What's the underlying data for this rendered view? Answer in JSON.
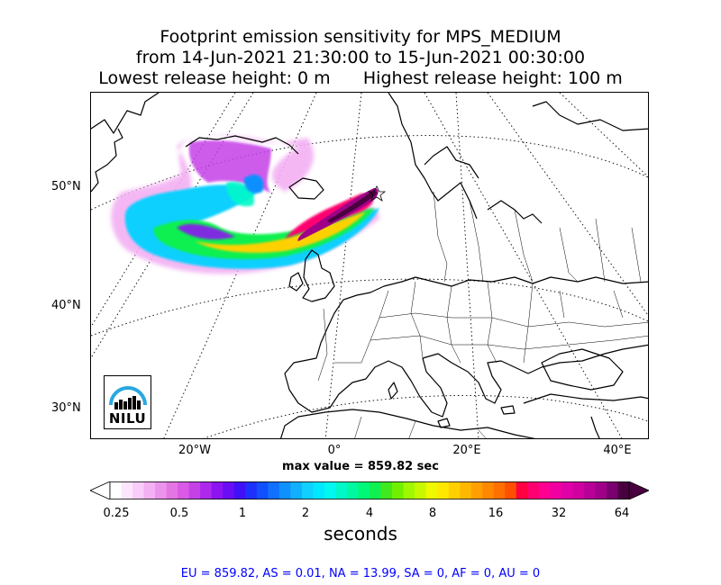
{
  "title": {
    "line1": "Footprint emission sensitivity for MPS_MEDIUM",
    "line2": "from 14-Jun-2021 21:30:00 to 15-Jun-2021 00:30:00",
    "line3": "Lowest release height: 0 m      Highest release height: 100 m"
  },
  "map": {
    "lat_labels": [
      "50°N",
      "40°N",
      "30°N"
    ],
    "lon_labels": [
      "20°W",
      "0°",
      "20°E",
      "40°E"
    ],
    "logo_text": "NILU",
    "logo_color": "#29a8e0"
  },
  "max_value": "max value = 859.82 sec",
  "colorbar": {
    "label": "seconds",
    "ticks": [
      "0.25",
      "0.5",
      "1",
      "2",
      "4",
      "8",
      "16",
      "32",
      "64"
    ],
    "colors": [
      "#ffffff",
      "#fde6fd",
      "#f9ccf9",
      "#f3b0f3",
      "#ec94ec",
      "#e476e4",
      "#d95ae5",
      "#c640e8",
      "#ac28ec",
      "#8c14f0",
      "#6a0cf4",
      "#4010f8",
      "#2030fc",
      "#1050ff",
      "#1070ff",
      "#1090ff",
      "#10b0ff",
      "#10d0ff",
      "#00e8ff",
      "#00f8f0",
      "#00f8c8",
      "#00f8a0",
      "#00f878",
      "#10f050",
      "#40e820",
      "#70f000",
      "#a0f800",
      "#c8f800",
      "#f0f800",
      "#ffe800",
      "#ffd000",
      "#ffb800",
      "#ffa000",
      "#ff8800",
      "#ff7000",
      "#ff5000",
      "#ff0040",
      "#ff0070",
      "#ff0090",
      "#f000a0",
      "#e000a8",
      "#d000a0",
      "#b80098",
      "#a00088",
      "#7a0070",
      "#4a0040"
    ]
  },
  "stats": "EU = 859.82,  AS = 0.01,  NA = 13.99,  SA = 0,  AF = 0,  AU = 0"
}
